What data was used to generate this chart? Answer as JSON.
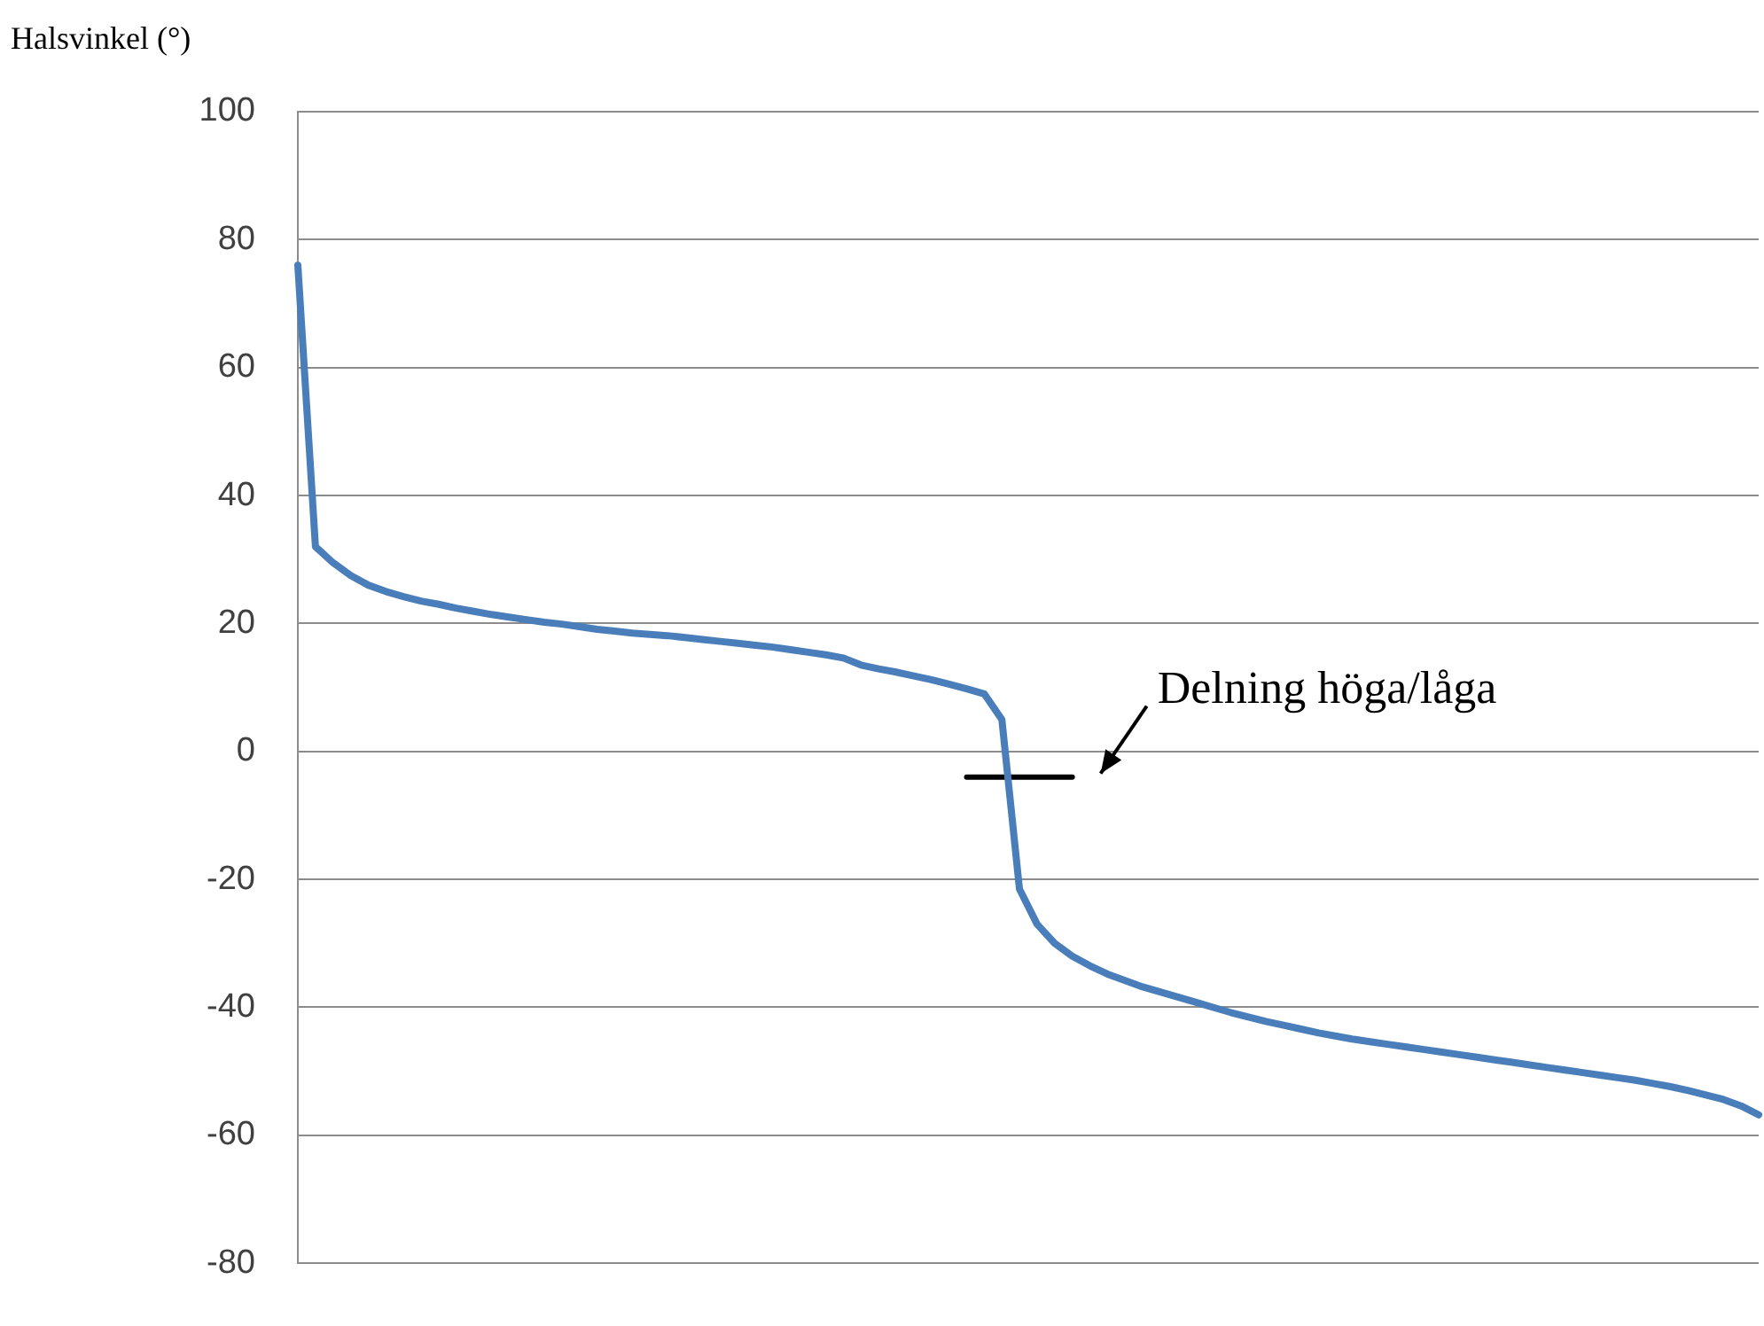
{
  "chart_data": {
    "type": "line",
    "ylabel": "Halsvinkel (°)",
    "categories": [
      null,
      null,
      null,
      null,
      null,
      null,
      null,
      null,
      null,
      null,
      null,
      null,
      null,
      null,
      null,
      null,
      null,
      null,
      null,
      null,
      null,
      null,
      null,
      null,
      null,
      null,
      null,
      null,
      null,
      null,
      null,
      null,
      null,
      null,
      null,
      null,
      null,
      null,
      null,
      null,
      null,
      null,
      null,
      null,
      null,
      null,
      null,
      null,
      null,
      null,
      null,
      null,
      null,
      null,
      null,
      null,
      null,
      null,
      null,
      null,
      null,
      null,
      null,
      null,
      null,
      null,
      null,
      null,
      null,
      null,
      null,
      null,
      null,
      null,
      null,
      null,
      null,
      null,
      null,
      null,
      null,
      null,
      null,
      null
    ],
    "series": [
      {
        "color": "#4a7ebb",
        "values": [
          76,
          32,
          29.5,
          27.5,
          26,
          25,
          24.2,
          23.5,
          23,
          22.4,
          21.9,
          21.4,
          21,
          20.6,
          20.2,
          19.9,
          19.5,
          19.1,
          18.8,
          18.5,
          18.3,
          18.1,
          17.8,
          17.5,
          17.2,
          16.9,
          16.6,
          16.3,
          15.9,
          15.5,
          15.1,
          14.6,
          13.5,
          12.9,
          12.4,
          11.8,
          11.2,
          10.5,
          9.8,
          9,
          5,
          -21.5,
          -27,
          -30,
          -32,
          -33.5,
          -34.8,
          -35.8,
          -36.8,
          -37.6,
          -38.4,
          -39.2,
          -40,
          -40.8,
          -41.5,
          -42.2,
          -42.8,
          -43.4,
          -44,
          -44.5,
          -45,
          -45.4,
          -45.8,
          -46.2,
          -46.6,
          -47,
          -47.4,
          -47.8,
          -48.2,
          -48.6,
          -49,
          -49.4,
          -49.8,
          -50.2,
          -50.6,
          -51,
          -51.4,
          -51.9,
          -52.4,
          -53,
          -53.7,
          -54.4,
          -55.4,
          -56.8
        ]
      },
      {
        "color": "#000000",
        "values": [
          null,
          null,
          null,
          null,
          null,
          null,
          null,
          null,
          null,
          null,
          null,
          null,
          null,
          null,
          null,
          null,
          null,
          null,
          null,
          null,
          null,
          null,
          null,
          null,
          null,
          null,
          null,
          null,
          null,
          null,
          null,
          null,
          null,
          null,
          null,
          null,
          null,
          null,
          -4,
          -4,
          -4,
          -4,
          -4,
          -4,
          -4,
          null,
          null,
          null,
          null,
          null,
          null,
          null,
          null,
          null,
          null,
          null,
          null,
          null,
          null,
          null,
          null,
          null,
          null,
          null,
          null,
          null,
          null,
          null,
          null,
          null,
          null,
          null,
          null,
          null,
          null,
          null,
          null,
          null,
          null,
          null,
          null,
          null,
          null,
          null
        ]
      }
    ],
    "ylim": [
      -80,
      100
    ],
    "yticks": [
      -80,
      -60,
      -40,
      -20,
      0,
      20,
      40,
      60,
      80,
      100
    ],
    "grid": "y",
    "legend": false,
    "marker": "none",
    "line_style": "solid",
    "annotations": [
      "Delning höga/låga"
    ]
  }
}
